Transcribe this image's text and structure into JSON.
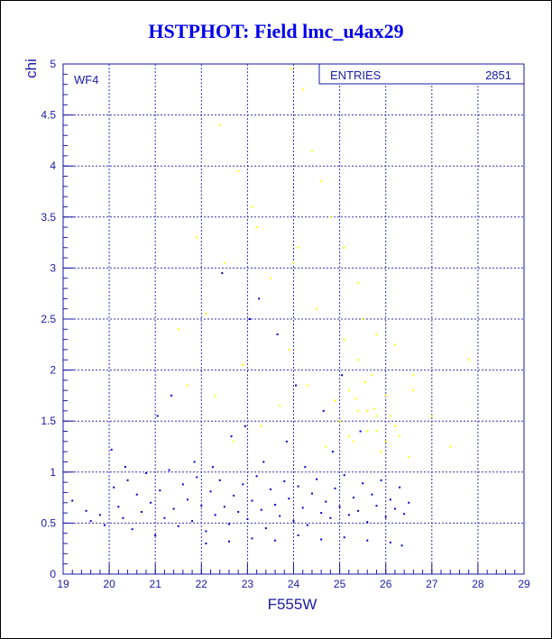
{
  "chart_data": {
    "type": "scatter",
    "title": "HSTPHOT: Field lmc_u4ax29",
    "xlabel": "F555W",
    "ylabel": "chi",
    "panel_label": "WF4",
    "stats": {
      "label": "ENTRIES",
      "value": "2851"
    },
    "xlim": [
      19,
      29
    ],
    "ylim": [
      0,
      5
    ],
    "x_ticks": [
      "19",
      "20",
      "21",
      "22",
      "23",
      "24",
      "25",
      "26",
      "27",
      "28",
      "29"
    ],
    "y_ticks": [
      "0",
      "0.5",
      "1",
      "1.5",
      "2",
      "2.5",
      "3",
      "3.5",
      "4",
      "4.5",
      "5"
    ],
    "grid": true,
    "series_colors": {
      "good": "#0000cc",
      "rejected": "#ffff00"
    },
    "series": [
      {
        "points": [
          [
            19.2,
            0.72
          ],
          [
            19.5,
            0.62
          ],
          [
            19.6,
            0.52
          ],
          [
            19.8,
            0.58
          ],
          [
            19.9,
            0.48
          ],
          [
            20.1,
            0.85
          ],
          [
            20.2,
            0.66
          ],
          [
            20.3,
            0.55
          ],
          [
            20.4,
            0.92
          ],
          [
            20.5,
            0.44
          ],
          [
            20.6,
            0.78
          ],
          [
            20.7,
            0.61
          ],
          [
            20.8,
            0.99
          ],
          [
            20.9,
            0.7
          ],
          [
            21.0,
            0.38
          ],
          [
            21.1,
            0.82
          ],
          [
            21.2,
            0.55
          ],
          [
            21.3,
            1.02
          ],
          [
            21.4,
            0.64
          ],
          [
            21.5,
            0.47
          ],
          [
            21.6,
            0.88
          ],
          [
            21.7,
            0.73
          ],
          [
            21.8,
            0.52
          ],
          [
            21.9,
            0.95
          ],
          [
            22.0,
            0.67
          ],
          [
            22.1,
            0.42
          ],
          [
            22.2,
            0.81
          ],
          [
            22.3,
            0.58
          ],
          [
            22.4,
            0.92
          ],
          [
            22.5,
            0.66
          ],
          [
            22.6,
            0.49
          ],
          [
            22.7,
            0.77
          ],
          [
            22.8,
            0.61
          ],
          [
            22.9,
            0.88
          ],
          [
            23.0,
            0.54
          ],
          [
            23.1,
            0.72
          ],
          [
            23.2,
            0.96
          ],
          [
            23.3,
            0.63
          ],
          [
            23.4,
            0.45
          ],
          [
            23.5,
            0.83
          ],
          [
            23.6,
            0.68
          ],
          [
            23.7,
            0.57
          ],
          [
            23.8,
            0.91
          ],
          [
            23.9,
            0.74
          ],
          [
            24.0,
            0.52
          ],
          [
            24.1,
            0.86
          ],
          [
            24.2,
            0.65
          ],
          [
            24.3,
            0.48
          ],
          [
            24.4,
            0.79
          ],
          [
            24.5,
            0.93
          ],
          [
            24.6,
            0.6
          ],
          [
            24.7,
            0.71
          ],
          [
            24.8,
            0.55
          ],
          [
            24.9,
            0.84
          ],
          [
            25.0,
            0.66
          ],
          [
            25.1,
            0.97
          ],
          [
            25.2,
            0.58
          ],
          [
            25.3,
            0.75
          ],
          [
            25.4,
            0.62
          ],
          [
            25.5,
            0.89
          ],
          [
            25.6,
            0.51
          ],
          [
            25.7,
            0.78
          ],
          [
            25.8,
            0.67
          ],
          [
            25.9,
            0.92
          ],
          [
            26.0,
            0.56
          ],
          [
            26.1,
            0.73
          ],
          [
            26.2,
            0.64
          ],
          [
            26.3,
            0.85
          ],
          [
            26.4,
            0.59
          ],
          [
            26.5,
            0.7
          ],
          [
            20.05,
            1.22
          ],
          [
            20.35,
            1.05
          ],
          [
            21.05,
            1.55
          ],
          [
            21.35,
            1.75
          ],
          [
            21.85,
            1.1
          ],
          [
            22.25,
            1.05
          ],
          [
            22.45,
            2.95
          ],
          [
            22.65,
            1.35
          ],
          [
            22.95,
            1.45
          ],
          [
            23.35,
            1.1
          ],
          [
            23.65,
            2.35
          ],
          [
            23.85,
            1.3
          ],
          [
            24.05,
            1.85
          ],
          [
            24.25,
            1.05
          ],
          [
            24.65,
            1.6
          ],
          [
            24.85,
            1.2
          ],
          [
            25.05,
            1.95
          ],
          [
            25.45,
            1.4
          ],
          [
            22.1,
            0.3
          ],
          [
            22.6,
            0.32
          ],
          [
            23.1,
            0.35
          ],
          [
            23.6,
            0.33
          ],
          [
            24.1,
            0.38
          ],
          [
            24.6,
            0.34
          ],
          [
            25.1,
            0.36
          ],
          [
            25.6,
            0.33
          ],
          [
            26.1,
            0.31
          ],
          [
            26.35,
            0.28
          ],
          [
            23.25,
            2.7
          ],
          [
            23.05,
            2.5
          ]
        ]
      },
      {
        "points": [
          [
            25.2,
            1.8
          ],
          [
            25.4,
            2.1
          ],
          [
            25.6,
            1.6
          ],
          [
            25.8,
            1.4
          ],
          [
            26.0,
            1.75
          ],
          [
            25.3,
            1.3
          ],
          [
            25.5,
            2.5
          ],
          [
            25.7,
            1.95
          ],
          [
            25.9,
            1.2
          ],
          [
            26.1,
            1.55
          ],
          [
            26.3,
            1.35
          ],
          [
            26.5,
            1.15
          ],
          [
            26.6,
            1.8
          ],
          [
            25.1,
            2.3
          ],
          [
            24.9,
            1.7
          ],
          [
            24.7,
            1.25
          ],
          [
            24.5,
            2.6
          ],
          [
            24.3,
            1.85
          ],
          [
            24.1,
            3.2
          ],
          [
            23.9,
            2.2
          ],
          [
            23.7,
            1.65
          ],
          [
            23.5,
            2.9
          ],
          [
            23.3,
            1.45
          ],
          [
            23.1,
            3.6
          ],
          [
            22.9,
            2.05
          ],
          [
            22.7,
            1.3
          ],
          [
            22.5,
            3.05
          ],
          [
            22.3,
            1.75
          ],
          [
            22.1,
            2.55
          ],
          [
            21.9,
            3.3
          ],
          [
            21.7,
            1.85
          ],
          [
            21.5,
            2.4
          ],
          [
            24.2,
            4.75
          ],
          [
            24.4,
            4.15
          ],
          [
            24.6,
            3.85
          ],
          [
            24.8,
            3.5
          ],
          [
            25.1,
            3.2
          ],
          [
            25.4,
            2.85
          ],
          [
            25.8,
            2.35
          ],
          [
            26.2,
            2.25
          ],
          [
            26.6,
            1.95
          ],
          [
            27.0,
            1.55
          ],
          [
            27.4,
            1.25
          ],
          [
            27.8,
            2.1
          ],
          [
            22.4,
            4.4
          ],
          [
            22.8,
            3.95
          ],
          [
            23.2,
            3.4
          ],
          [
            24.0,
            3.05
          ],
          [
            24.95,
            4.95
          ],
          [
            23.95,
            4.95
          ],
          [
            25.0,
            1.5
          ],
          [
            25.2,
            1.35
          ],
          [
            25.4,
            1.6
          ],
          [
            25.6,
            1.4
          ],
          [
            25.8,
            1.55
          ],
          [
            26.0,
            1.3
          ],
          [
            26.2,
            1.45
          ],
          [
            25.35,
            1.72
          ],
          [
            25.55,
            1.88
          ],
          [
            25.75,
            1.62
          ]
        ]
      }
    ]
  }
}
